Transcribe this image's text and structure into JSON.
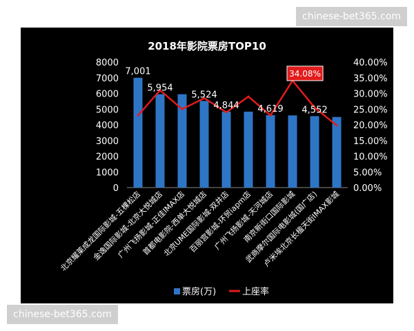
{
  "watermark_top": "chinese-bet365.com",
  "watermark_bottom": "chinese-bet365.com",
  "nav": {
    "prev_symbol": "<"
  },
  "chart_data": {
    "type": "bar",
    "title": "2018年影院票房TOP10",
    "categories": [
      "北京耀莱成龙国际影城-五棵松店",
      "金逸国际影城-北京大悦城店",
      "广州飞扬影城-正佳IMAX店",
      "首都电影院-西单大悦城店",
      "北京UME国际影城-双井店",
      "百丽宫影城-环贸iapm店",
      "广州飞扬影城-天河城店",
      "南京新街口国际影城",
      "武商摩尔国际电影城(国广店)",
      "卢米埃北京长楹天街IMAX影城"
    ],
    "series": [
      {
        "name": "票房(万)",
        "type": "bar",
        "axis": "left",
        "color": "#2e75c6",
        "values": [
          7001,
          5954,
          5950,
          5524,
          4844,
          4840,
          4619,
          4600,
          4552,
          4500
        ],
        "labels": [
          "7,001",
          "5,954",
          "",
          "5,524",
          "4,844",
          "",
          "4,619",
          "",
          "4,552",
          ""
        ]
      },
      {
        "name": "上座率",
        "type": "line",
        "axis": "right",
        "color": "#e11c1c",
        "values": [
          23.0,
          31.0,
          25.0,
          28.5,
          24.0,
          29.0,
          23.0,
          34.08,
          25.5,
          19.8
        ],
        "labels": [
          "",
          "",
          "",
          "",
          "",
          "",
          "",
          "34.08%",
          "",
          ""
        ]
      }
    ],
    "y_left": {
      "min": 0,
      "max": 8000,
      "ticks": [
        "0",
        "1000",
        "2000",
        "3000",
        "4000",
        "5000",
        "6000",
        "7000",
        "8000"
      ]
    },
    "y_right": {
      "min": 0,
      "max": 40,
      "ticks": [
        "0.00%",
        "5.00%",
        "10.00%",
        "15.00%",
        "20.00%",
        "25.00%",
        "30.00%",
        "35.00%",
        "40.00%"
      ]
    },
    "legend": {
      "position": "bottom",
      "items": [
        "票房(万)",
        "上座率"
      ]
    },
    "grid": false,
    "colors": {
      "background": "#000000",
      "text": "#ffffff",
      "axis": "#888888",
      "highlight_label_bg": "#e11c1c"
    }
  }
}
